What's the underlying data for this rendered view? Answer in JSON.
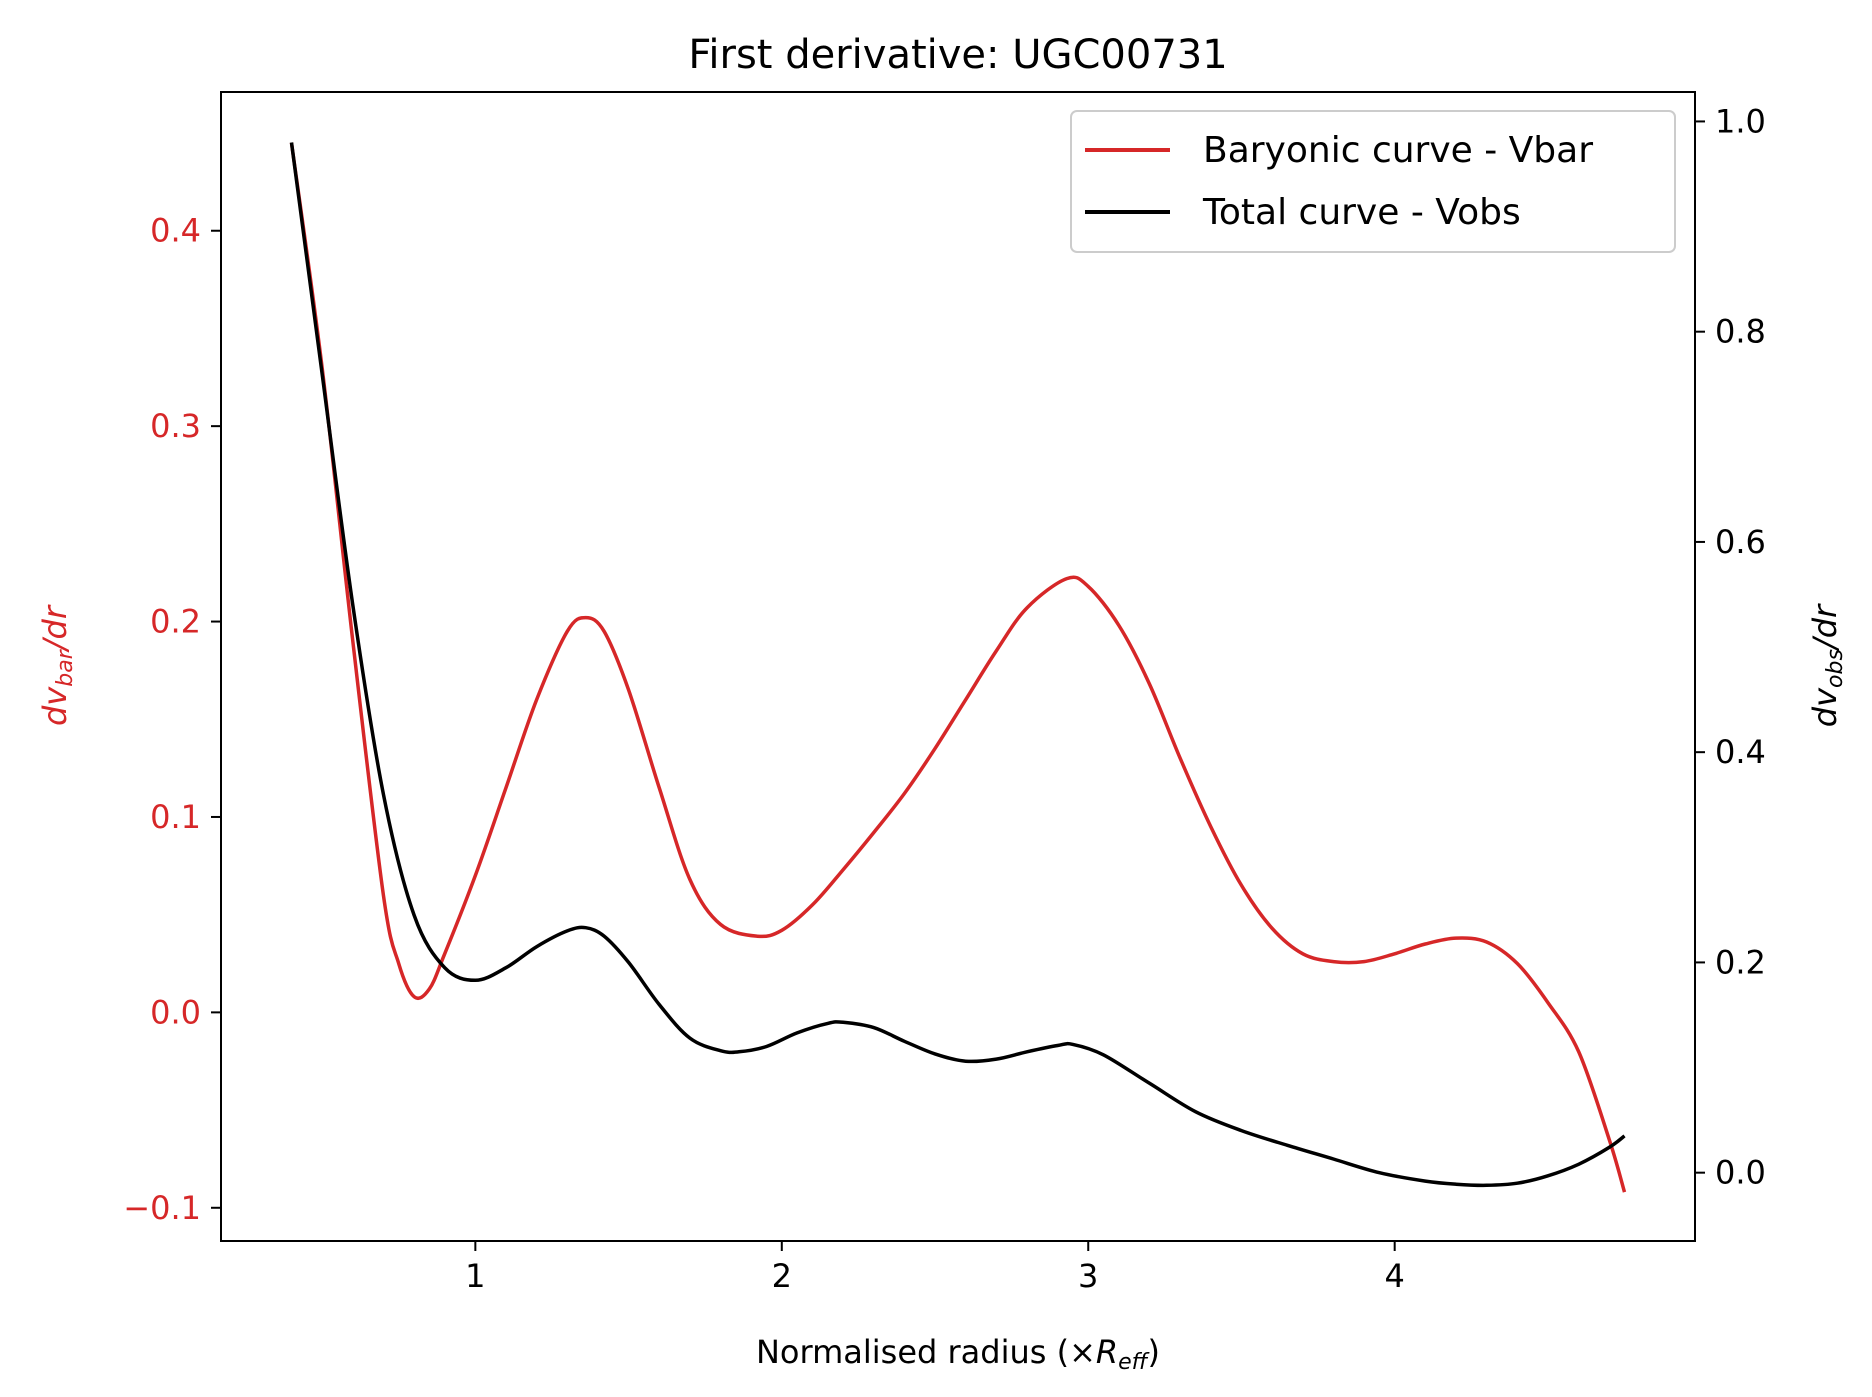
{
  "chart_data": {
    "type": "line",
    "title": "First derivative: UGC00731",
    "xlabel": {
      "prefix": "Normalised radius (×",
      "symbol": "R",
      "sub": "eff",
      "suffix": ")"
    },
    "ylabel_left": {
      "prefix": "dv",
      "sub": "bar",
      "suffix": "/dr"
    },
    "ylabel_right": {
      "prefix": "dv",
      "sub": "obs",
      "suffix": "/dr"
    },
    "xlim": [
      0.17,
      4.98
    ],
    "ylim_left": [
      -0.117,
      0.471
    ],
    "ylim_right": [
      -0.065,
      1.028
    ],
    "x_ticks": [
      1,
      2,
      3,
      4
    ],
    "x_tick_labels": [
      "1",
      "2",
      "3",
      "4"
    ],
    "y_left_ticks": [
      -0.1,
      0.0,
      0.1,
      0.2,
      0.3,
      0.4
    ],
    "y_left_tick_labels": [
      "−0.1",
      "0.0",
      "0.1",
      "0.2",
      "0.3",
      "0.4"
    ],
    "y_right_ticks": [
      0.0,
      0.2,
      0.4,
      0.6,
      0.8,
      1.0
    ],
    "y_right_tick_labels": [
      "0.0",
      "0.2",
      "0.4",
      "0.6",
      "0.8",
      "1.0"
    ],
    "legend_position": "upper-right",
    "grid": false,
    "colors": {
      "bar": "#d62728",
      "obs": "#000000",
      "left_axis_text": "#d62728",
      "right_axis_text": "#000000"
    },
    "series": [
      {
        "name": "Baryonic curve - Vbar",
        "axis": "left",
        "x": [
          0.4,
          0.5,
          0.6,
          0.7,
          0.75,
          0.8,
          0.85,
          0.9,
          1.0,
          1.1,
          1.2,
          1.3,
          1.36,
          1.42,
          1.5,
          1.6,
          1.7,
          1.8,
          1.92,
          2.0,
          2.1,
          2.2,
          2.3,
          2.4,
          2.5,
          2.6,
          2.7,
          2.8,
          2.93,
          3.0,
          3.1,
          3.2,
          3.3,
          3.4,
          3.5,
          3.6,
          3.7,
          3.8,
          3.9,
          4.0,
          4.1,
          4.2,
          4.3,
          4.4,
          4.5,
          4.6,
          4.7,
          4.75
        ],
        "y": [
          0.445,
          0.33,
          0.19,
          0.06,
          0.025,
          0.008,
          0.012,
          0.03,
          0.07,
          0.115,
          0.16,
          0.195,
          0.202,
          0.195,
          0.165,
          0.115,
          0.068,
          0.045,
          0.039,
          0.042,
          0.055,
          0.073,
          0.092,
          0.112,
          0.135,
          0.16,
          0.185,
          0.207,
          0.222,
          0.218,
          0.198,
          0.168,
          0.13,
          0.095,
          0.065,
          0.043,
          0.03,
          0.026,
          0.026,
          0.03,
          0.035,
          0.038,
          0.036,
          0.025,
          0.005,
          -0.02,
          -0.065,
          -0.092
        ]
      },
      {
        "name": "Total curve - Vobs",
        "axis": "right",
        "x": [
          0.4,
          0.5,
          0.6,
          0.7,
          0.8,
          0.9,
          1.0,
          1.1,
          1.2,
          1.3,
          1.36,
          1.42,
          1.5,
          1.6,
          1.7,
          1.8,
          1.86,
          1.95,
          2.05,
          2.15,
          2.2,
          2.3,
          2.4,
          2.5,
          2.6,
          2.7,
          2.8,
          2.9,
          2.95,
          3.05,
          3.2,
          3.35,
          3.5,
          3.65,
          3.8,
          3.95,
          4.1,
          4.2,
          4.3,
          4.4,
          4.5,
          4.6,
          4.7,
          4.75
        ],
        "y": [
          0.98,
          0.76,
          0.54,
          0.36,
          0.245,
          0.195,
          0.183,
          0.195,
          0.215,
          0.23,
          0.233,
          0.225,
          0.2,
          0.16,
          0.128,
          0.116,
          0.115,
          0.12,
          0.133,
          0.142,
          0.143,
          0.138,
          0.125,
          0.113,
          0.106,
          0.108,
          0.115,
          0.121,
          0.122,
          0.112,
          0.085,
          0.058,
          0.04,
          0.026,
          0.013,
          0.0,
          -0.008,
          -0.011,
          -0.012,
          -0.01,
          -0.003,
          0.008,
          0.024,
          0.035
        ]
      }
    ]
  }
}
